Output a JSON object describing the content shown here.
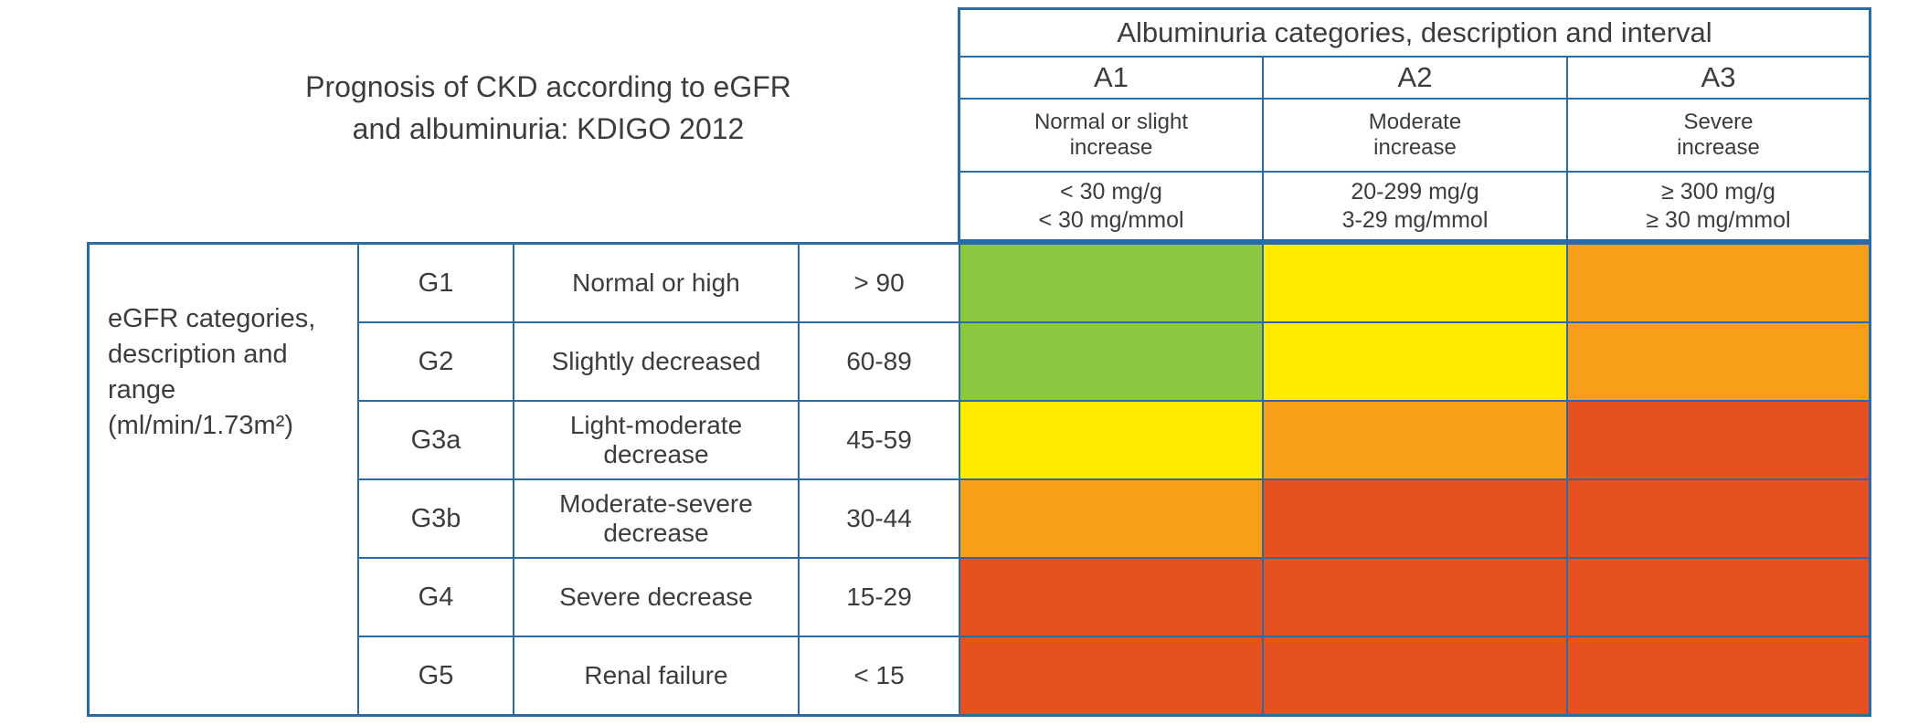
{
  "title": {
    "line1": "Prognosis of CKD according to eGFR",
    "line2": "and albuminuria: KDIGO 2012"
  },
  "albuminuria": {
    "header": "Albuminuria categories, description and interval",
    "columns": [
      {
        "code": "A1",
        "desc1": "Normal or slight",
        "desc2": "increase",
        "val1": "< 30 mg/g",
        "val2": "< 30 mg/mmol"
      },
      {
        "code": "A2",
        "desc1": "Moderate",
        "desc2": "increase",
        "val1": "20-299 mg/g",
        "val2": "3-29 mg/mmol"
      },
      {
        "code": "A3",
        "desc1": "Severe",
        "desc2": "increase",
        "val1": "≥ 300 mg/g",
        "val2": "≥ 30 mg/mmol"
      }
    ]
  },
  "egfr": {
    "axis_label": "eGFR categories, description and range (ml/min/1.73m²)",
    "rows": [
      {
        "code": "G1",
        "description": "Normal or high",
        "range": "> 90",
        "risk": [
          "green",
          "yellow",
          "orange"
        ]
      },
      {
        "code": "G2",
        "description": "Slightly decreased",
        "range": "60-89",
        "risk": [
          "green",
          "yellow",
          "orange"
        ]
      },
      {
        "code": "G3a",
        "description": "Light-moderate decrease",
        "range": "45-59",
        "risk": [
          "yellow",
          "orange",
          "red"
        ]
      },
      {
        "code": "G3b",
        "description": "Moderate-severe decrease",
        "range": "30-44",
        "risk": [
          "orange",
          "red",
          "red"
        ]
      },
      {
        "code": "G4",
        "description": "Severe decrease",
        "range": "15-29",
        "risk": [
          "red",
          "red",
          "red"
        ]
      },
      {
        "code": "G5",
        "description": "Renal failure",
        "range": "< 15",
        "risk": [
          "red",
          "red",
          "red"
        ]
      }
    ]
  },
  "colors": {
    "green": "#8dc63f",
    "yellow": "#ffeb00",
    "orange": "#f6a01a",
    "red": "#e6521f",
    "border": "#2a6ba3",
    "text": "#3c3c3b"
  },
  "chart_data": {
    "type": "heatmap",
    "title": "Prognosis of CKD according to eGFR and albuminuria: KDIGO 2012",
    "x_axis_label": "Albuminuria categories, description and interval",
    "y_axis_label": "eGFR categories, description and range (ml/min/1.73m²)",
    "x_categories": [
      "A1",
      "A2",
      "A3"
    ],
    "x_category_descriptions": [
      "Normal or slight increase",
      "Moderate increase",
      "Severe increase"
    ],
    "x_category_intervals": [
      "< 30 mg/g; < 30 mg/mmol",
      "20-299 mg/g; 3-29 mg/mmol",
      "≥ 300 mg/g; ≥ 30 mg/mmol"
    ],
    "y_categories": [
      "G1",
      "G2",
      "G3a",
      "G3b",
      "G4",
      "G5"
    ],
    "y_category_descriptions": [
      "Normal or high",
      "Slightly decreased",
      "Light-moderate decrease",
      "Moderate-severe decrease",
      "Severe decrease",
      "Renal failure"
    ],
    "y_category_ranges": [
      "> 90",
      "60-89",
      "45-59",
      "30-44",
      "15-29",
      "< 15"
    ],
    "cells": [
      [
        "green",
        "yellow",
        "orange"
      ],
      [
        "green",
        "yellow",
        "orange"
      ],
      [
        "yellow",
        "orange",
        "red"
      ],
      [
        "orange",
        "red",
        "red"
      ],
      [
        "red",
        "red",
        "red"
      ],
      [
        "red",
        "red",
        "red"
      ]
    ],
    "legend_position": "none",
    "grid": true
  }
}
